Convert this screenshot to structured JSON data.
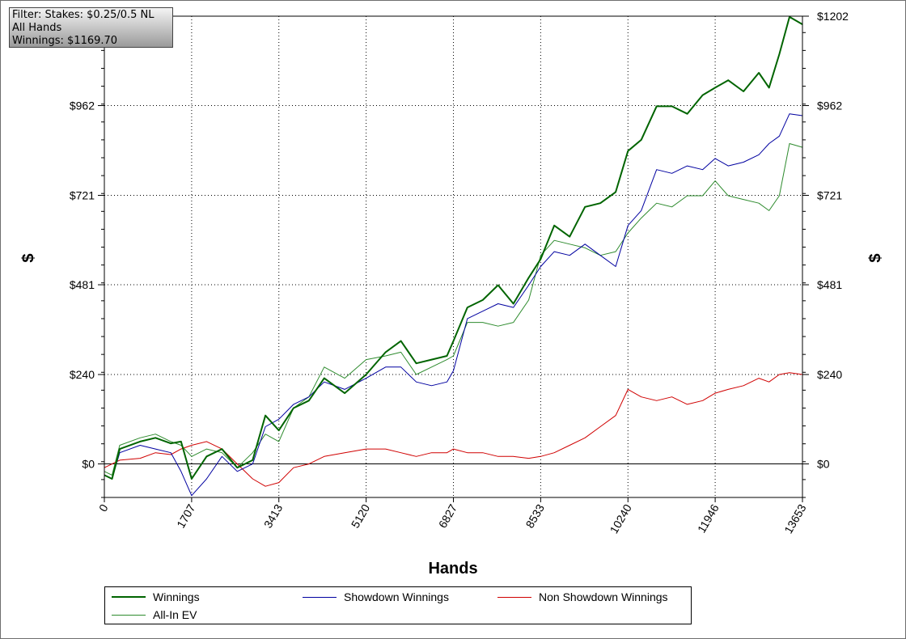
{
  "filter_box": {
    "line1": "Filter: Stakes: $0.25/0.5 NL",
    "line2": "All Hands",
    "line3": "Winnings: $1169.70"
  },
  "chart_data": {
    "type": "line",
    "xlabel": "Hands",
    "ylabel": "$",
    "xlim": [
      0,
      13653
    ],
    "ylim": [
      -90,
      1202
    ],
    "x_ticks": [
      0,
      1707,
      3413,
      5120,
      6827,
      8533,
      10240,
      11946,
      13653
    ],
    "y_ticks": [
      {
        "value": 0,
        "label": "$0"
      },
      {
        "value": 240,
        "label": "$240"
      },
      {
        "value": 481,
        "label": "$481"
      },
      {
        "value": 721,
        "label": "$721"
      },
      {
        "value": 962,
        "label": "$962"
      },
      {
        "value": 1202,
        "label": "$1202"
      }
    ],
    "grid": true,
    "legend_position": "bottom",
    "series": [
      {
        "name": "Winnings",
        "color": "#006400",
        "x": [
          0,
          150,
          300,
          700,
          1000,
          1300,
          1500,
          1707,
          2000,
          2300,
          2600,
          2900,
          3150,
          3413,
          3700,
          4000,
          4300,
          4700,
          5120,
          5500,
          5800,
          6100,
          6400,
          6700,
          6827,
          7100,
          7400,
          7700,
          8000,
          8300,
          8533,
          8800,
          9100,
          9400,
          9700,
          10000,
          10240,
          10500,
          10800,
          11100,
          11400,
          11700,
          11946,
          12200,
          12500,
          12800,
          13000,
          13200,
          13400,
          13653
        ],
        "y": [
          -30,
          -40,
          40,
          60,
          70,
          55,
          60,
          -40,
          20,
          40,
          -10,
          10,
          130,
          90,
          150,
          170,
          230,
          190,
          240,
          300,
          330,
          270,
          280,
          290,
          330,
          420,
          440,
          480,
          430,
          500,
          550,
          640,
          610,
          690,
          700,
          730,
          840,
          870,
          960,
          960,
          940,
          990,
          1010,
          1030,
          1000,
          1050,
          1010,
          1100,
          1200,
          1180
        ]
      },
      {
        "name": "Showdown Winnings",
        "color": "#0000a0",
        "x": [
          0,
          150,
          300,
          700,
          1000,
          1300,
          1500,
          1707,
          2000,
          2300,
          2600,
          2900,
          3150,
          3413,
          3700,
          4000,
          4300,
          4700,
          5120,
          5500,
          5800,
          6100,
          6400,
          6700,
          6827,
          7100,
          7400,
          7700,
          8000,
          8300,
          8533,
          8800,
          9100,
          9400,
          9700,
          10000,
          10240,
          10500,
          10800,
          11100,
          11400,
          11700,
          11946,
          12200,
          12500,
          12800,
          13000,
          13200,
          13400,
          13653
        ],
        "y": [
          -30,
          -40,
          30,
          50,
          40,
          30,
          -20,
          -85,
          -40,
          20,
          -20,
          0,
          100,
          120,
          160,
          180,
          220,
          200,
          230,
          260,
          260,
          220,
          210,
          220,
          250,
          390,
          410,
          430,
          420,
          480,
          530,
          570,
          560,
          590,
          560,
          530,
          640,
          680,
          790,
          780,
          800,
          790,
          820,
          800,
          810,
          830,
          860,
          880,
          940,
          935
        ]
      },
      {
        "name": "Non Showdown Winnings",
        "color": "#d00000",
        "x": [
          0,
          150,
          300,
          700,
          1000,
          1300,
          1500,
          1707,
          2000,
          2300,
          2600,
          2900,
          3150,
          3413,
          3700,
          4000,
          4300,
          4700,
          5120,
          5500,
          5800,
          6100,
          6400,
          6700,
          6827,
          7100,
          7400,
          7700,
          8000,
          8300,
          8533,
          8800,
          9100,
          9400,
          9700,
          10000,
          10240,
          10500,
          10800,
          11100,
          11400,
          11700,
          11946,
          12200,
          12500,
          12800,
          13000,
          13200,
          13400,
          13653
        ],
        "y": [
          -10,
          0,
          10,
          15,
          30,
          25,
          40,
          50,
          60,
          40,
          0,
          -40,
          -60,
          -50,
          -10,
          0,
          20,
          30,
          40,
          40,
          30,
          20,
          30,
          30,
          40,
          30,
          30,
          20,
          20,
          15,
          20,
          30,
          50,
          70,
          100,
          130,
          200,
          180,
          170,
          180,
          160,
          170,
          190,
          200,
          210,
          230,
          220,
          240,
          245,
          240
        ]
      },
      {
        "name": "All-In EV",
        "color": "#2e8b2e",
        "x": [
          0,
          150,
          300,
          700,
          1000,
          1300,
          1500,
          1707,
          2000,
          2300,
          2600,
          2900,
          3150,
          3413,
          3700,
          4000,
          4300,
          4700,
          5120,
          5500,
          5800,
          6100,
          6400,
          6700,
          6827,
          7100,
          7400,
          7700,
          8000,
          8300,
          8533,
          8800,
          9100,
          9400,
          9700,
          10000,
          10240,
          10500,
          10800,
          11100,
          11400,
          11700,
          11946,
          12200,
          12500,
          12800,
          13000,
          13200,
          13400,
          13653
        ],
        "y": [
          -20,
          -30,
          50,
          70,
          80,
          60,
          50,
          20,
          40,
          30,
          -10,
          30,
          80,
          60,
          150,
          180,
          260,
          230,
          280,
          290,
          300,
          240,
          260,
          280,
          290,
          380,
          380,
          370,
          380,
          440,
          560,
          600,
          590,
          580,
          560,
          570,
          620,
          660,
          700,
          690,
          720,
          720,
          760,
          720,
          710,
          700,
          680,
          720,
          860,
          850
        ]
      }
    ]
  },
  "legend": {
    "items": [
      {
        "label": "Winnings",
        "color": "#006400"
      },
      {
        "label": "Showdown Winnings",
        "color": "#0000a0"
      },
      {
        "label": "Non Showdown Winnings",
        "color": "#d00000"
      },
      {
        "label": "All-In EV",
        "color": "#2e8b2e"
      }
    ]
  }
}
